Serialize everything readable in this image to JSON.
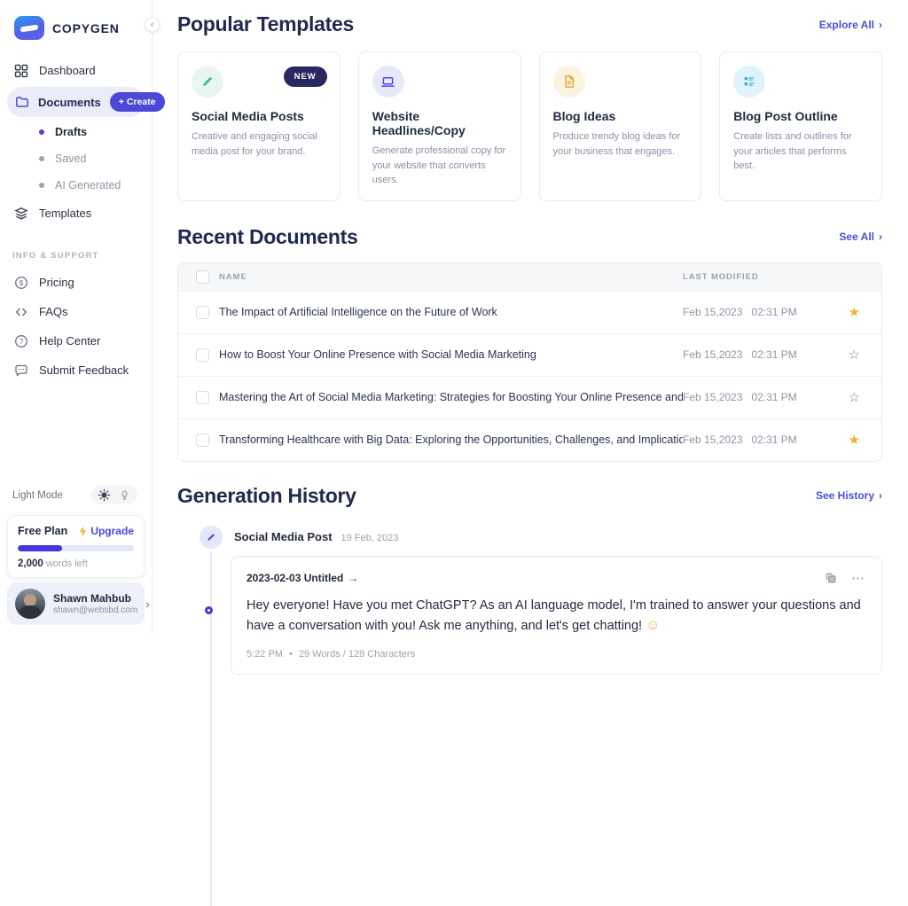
{
  "brand": {
    "name": "COPYGEN"
  },
  "theme_colors": {
    "accent": "#4A48D8",
    "accent_dark": "#4338E0",
    "heading": "#202A4E",
    "star_gold": "#F0B429",
    "badge_navy": "#2B2760"
  },
  "sidebar": {
    "collapse_icon": "‹",
    "nav": [
      {
        "label": "Dashboard"
      },
      {
        "label": "Documents",
        "create_label": "+ Create"
      },
      {
        "label": "Drafts"
      },
      {
        "label": "Saved"
      },
      {
        "label": "AI Generated"
      },
      {
        "label": "Templates"
      }
    ],
    "support": {
      "heading": "INFO & SUPPORT",
      "items": [
        {
          "label": "Pricing"
        },
        {
          "label": "FAQs"
        },
        {
          "label": "Help Center"
        },
        {
          "label": "Submit Feedback"
        }
      ]
    },
    "theme": {
      "label": "Light Mode"
    },
    "plan": {
      "name": "Free Plan",
      "upgrade_label": "Upgrade",
      "progress_percent": 38,
      "words_left_value": "2,000",
      "words_left_label": "words left"
    },
    "user": {
      "name": "Shawn Mahbub",
      "email": "shawn@websbd.com",
      "chevron": "›"
    }
  },
  "popular_templates": {
    "title": "Popular Templates",
    "action": "Explore All",
    "chevron": "›",
    "cards": [
      {
        "title": "Social Media Posts",
        "badge": "NEW",
        "description": "Creative and engaging social media post for your brand.",
        "icon": "pen-icon",
        "icon_color": "#2BB593"
      },
      {
        "title": "Website Headlines/Copy",
        "description": "Generate professional copy for your website that converts users.",
        "icon": "laptop-icon",
        "icon_color": "#4F46E5"
      },
      {
        "title": "Blog Ideas",
        "description": "Produce trendy blog ideas for your business that engages.",
        "icon": "file-icon",
        "icon_color": "#DFA62B"
      },
      {
        "title": "Blog Post Outline",
        "description": "Create lists and outlines for your articles that performs best.",
        "icon": "outline-icon",
        "icon_color": "#3AA8D8"
      }
    ]
  },
  "recent_documents": {
    "title": "Recent Documents",
    "action": "See All",
    "chevron": "›",
    "columns": {
      "name": "NAME",
      "last_modified": "LAST MODIFIED"
    },
    "rows": [
      {
        "name": "The Impact of Artificial Intelligence on the Future of Work",
        "date": "Feb 15,2023",
        "time": "02:31 PM",
        "starred": true
      },
      {
        "name": "How to Boost Your Online Presence with Social Media Marketing",
        "date": "Feb 15,2023",
        "time": "02:31 PM",
        "starred": false
      },
      {
        "name": "Mastering the Art of Social Media Marketing: Strategies for Boosting Your Online Presence and...",
        "date": "Feb 15,2023",
        "time": "02:31 PM",
        "starred": false
      },
      {
        "name": "Transforming Healthcare with Big Data: Exploring the Opportunities, Challenges, and Implicatio...",
        "date": "Feb 15,2023",
        "time": "02:31 PM",
        "starred": true
      }
    ]
  },
  "generation_history": {
    "title": "Generation History",
    "action": "See History",
    "chevron": "›",
    "group": {
      "type": "Social Media Post",
      "date": "19 Feb, 2023"
    },
    "entry": {
      "title": "2023-02-03 Untitled",
      "arrow": "→",
      "text": "Hey everyone! Have you met ChatGPT? As an AI language model, I'm trained to answer your questions and have a conversation with you! Ask me anything, and let's get chatting!",
      "emoji": "☺",
      "meta_time": "5:22 PM",
      "meta_sep": "•",
      "meta_stats": "29 Words / 129 Characters",
      "more_icon": "⋯"
    }
  }
}
